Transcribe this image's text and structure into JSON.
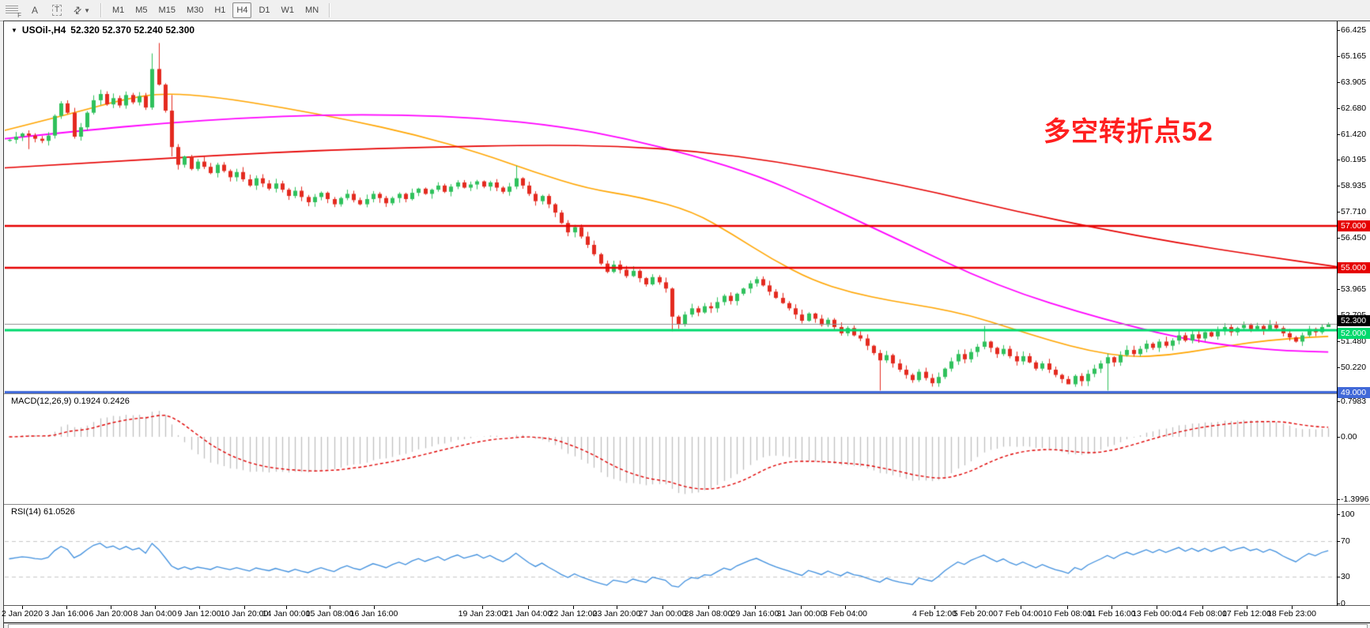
{
  "toolbar": {
    "tools": [
      {
        "id": "fibonacci",
        "glyph": "F"
      },
      {
        "id": "text",
        "glyph": "A"
      },
      {
        "id": "label",
        "glyph": "T"
      },
      {
        "id": "arrows",
        "glyph": "⇄"
      }
    ],
    "dropdown_caret": "▼",
    "timeframes": [
      "M1",
      "M5",
      "M15",
      "M30",
      "H1",
      "H4",
      "D1",
      "W1",
      "MN"
    ],
    "active_timeframe": "H4"
  },
  "chart": {
    "title_caret": "▼",
    "symbol_period": "USOil-,H4",
    "ohlc_display": "52.320 52.370 52.240 52.300"
  },
  "annotation": {
    "text": "多空转折点52",
    "color": "#ff1f1f"
  },
  "macd_panel": {
    "label": "MACD(12,26,9)",
    "values": "0.1924 0.2426",
    "axis_ticks": [
      {
        "text": "0.7983",
        "value": 0.7983
      },
      {
        "text": "0.00",
        "value": 0.0
      },
      {
        "text": "-1.3996",
        "value": -1.3996
      }
    ]
  },
  "rsi_panel": {
    "label": "RSI(14)",
    "value": "61.0526",
    "axis_ticks": [
      {
        "text": "100",
        "value": 100
      },
      {
        "text": "70",
        "value": 70
      },
      {
        "text": "30",
        "value": 30
      },
      {
        "text": "0",
        "value": 0
      }
    ],
    "guide_levels": [
      70,
      30
    ]
  },
  "price_axis": {
    "ticks": [
      "66.425",
      "65.165",
      "63.905",
      "62.680",
      "61.420",
      "60.195",
      "58.935",
      "57.710",
      "56.450",
      "53.965",
      "52.705",
      "51.480",
      "50.220"
    ],
    "badges": [
      {
        "text": "57.000",
        "price": 57.0,
        "bg": "#e60000",
        "fg": "#ffffff"
      },
      {
        "text": "55.000",
        "price": 55.0,
        "bg": "#e60000",
        "fg": "#ffffff"
      },
      {
        "text": "52.300",
        "price": 52.3,
        "bg": "#000000",
        "fg": "#ffffff"
      },
      {
        "text": "52.000",
        "price": 52.0,
        "bg": "#00d96d",
        "fg": "#ffffff"
      },
      {
        "text": "49.000",
        "price": 49.0,
        "bg": "#4169d8",
        "fg": "#ffffff"
      }
    ]
  },
  "chart_data": {
    "type": "candlestick",
    "symbol": "USOil-",
    "timeframe": "H4",
    "price_range_top": 66.77,
    "price_range_bottom": 48.95,
    "first_open": 61.1,
    "closes": [
      61.15,
      61.3,
      61.45,
      61.35,
      61.2,
      61.1,
      61.35,
      62.3,
      62.9,
      62.45,
      61.3,
      61.75,
      62.45,
      63.05,
      63.35,
      62.85,
      63.15,
      62.8,
      63.3,
      62.95,
      63.25,
      62.7,
      64.55,
      63.8,
      62.55,
      60.8,
      59.95,
      60.35,
      59.75,
      60.1,
      59.85,
      59.55,
      59.95,
      59.65,
      59.35,
      59.6,
      59.25,
      58.95,
      59.3,
      59.05,
      58.8,
      59.05,
      58.75,
      58.45,
      58.7,
      58.4,
      58.15,
      58.4,
      58.6,
      58.3,
      58.05,
      58.35,
      58.55,
      58.25,
      58.05,
      58.3,
      58.55,
      58.35,
      58.1,
      58.35,
      58.55,
      58.3,
      58.6,
      58.8,
      58.55,
      58.75,
      58.95,
      58.65,
      58.9,
      59.1,
      58.85,
      59.0,
      59.15,
      58.9,
      59.1,
      58.85,
      58.65,
      58.9,
      59.3,
      58.95,
      58.55,
      58.2,
      58.45,
      58.05,
      57.65,
      57.15,
      56.7,
      56.95,
      56.5,
      56.1,
      55.65,
      55.2,
      54.8,
      55.15,
      54.9,
      54.6,
      54.85,
      54.5,
      54.2,
      54.55,
      54.3,
      54.0,
      52.65,
      52.3,
      52.75,
      53.05,
      52.85,
      53.15,
      53.05,
      53.35,
      53.65,
      53.4,
      53.75,
      54.0,
      54.25,
      54.45,
      54.15,
      53.85,
      53.55,
      53.3,
      53.05,
      52.75,
      52.45,
      52.8,
      52.55,
      52.25,
      52.5,
      52.15,
      51.85,
      52.1,
      51.75,
      51.6,
      51.25,
      50.9,
      50.55,
      50.8,
      50.4,
      50.1,
      49.85,
      49.6,
      50.0,
      49.7,
      49.45,
      49.75,
      50.15,
      50.5,
      50.85,
      50.6,
      50.95,
      51.2,
      51.45,
      51.15,
      50.85,
      51.1,
      50.75,
      50.5,
      50.75,
      50.45,
      50.15,
      50.4,
      50.1,
      49.85,
      49.65,
      49.4,
      49.8,
      49.55,
      49.9,
      50.15,
      50.4,
      50.7,
      50.45,
      50.8,
      51.05,
      50.85,
      51.1,
      51.35,
      51.15,
      51.45,
      51.25,
      51.5,
      51.75,
      51.5,
      51.8,
      51.6,
      51.9,
      51.7,
      51.95,
      52.15,
      51.9,
      52.1,
      52.25,
      52.05,
      52.2,
      52.0,
      52.25,
      52.1,
      51.85,
      51.65,
      51.45,
      51.75,
      52.05,
      51.9,
      52.15,
      52.3
    ],
    "wick_overrides": {
      "3": {
        "l": 60.7
      },
      "22": {
        "h": 65.3
      },
      "23": {
        "h": 65.8
      },
      "25": {
        "h": 63.3,
        "l": 60.35
      },
      "78": {
        "h": 59.9
      },
      "102": {
        "l": 51.95
      },
      "134": {
        "l": 49.1
      },
      "150": {
        "h": 52.2
      },
      "163": {
        "l": 49.45
      },
      "169": {
        "l": 49.1
      },
      "203": {
        "h": 52.37,
        "l": 52.24
      }
    },
    "current_bar": {
      "open": 52.32,
      "high": 52.37,
      "low": 52.24,
      "close": 52.3
    },
    "colors": {
      "bull": "#2fc15c",
      "bear": "#e42a1f",
      "ma_fast": "#ffa500",
      "ma_mid": "#ff00ff",
      "ma_slow": "#e60000",
      "macd_histogram": "#c0c0c0",
      "macd_signal": "#e00000",
      "rsi_line": "#3f8fde",
      "rsi_guide": "#c8c8c8"
    },
    "moving_averages": [
      {
        "name": "ma-fast-orange",
        "color": "#ffa500",
        "width": 1.6,
        "full_width": false,
        "keypoints": [
          [
            0,
            61.6
          ],
          [
            0.05,
            62.4
          ],
          [
            0.09,
            63.1
          ],
          [
            0.12,
            63.4
          ],
          [
            0.16,
            63.2
          ],
          [
            0.21,
            62.7
          ],
          [
            0.26,
            62.1
          ],
          [
            0.31,
            61.4
          ],
          [
            0.36,
            60.5
          ],
          [
            0.4,
            59.6
          ],
          [
            0.44,
            58.8
          ],
          [
            0.48,
            58.4
          ],
          [
            0.52,
            57.7
          ],
          [
            0.55,
            56.6
          ],
          [
            0.58,
            55.4
          ],
          [
            0.61,
            54.4
          ],
          [
            0.64,
            53.8
          ],
          [
            0.67,
            53.4
          ],
          [
            0.7,
            53.1
          ],
          [
            0.73,
            52.7
          ],
          [
            0.76,
            52.1
          ],
          [
            0.79,
            51.5
          ],
          [
            0.82,
            51.0
          ],
          [
            0.85,
            50.7
          ],
          [
            0.88,
            50.8
          ],
          [
            0.91,
            51.1
          ],
          [
            0.94,
            51.4
          ],
          [
            0.97,
            51.6
          ],
          [
            1,
            51.7
          ]
        ]
      },
      {
        "name": "ma-mid-magenta",
        "color": "#ff00ff",
        "width": 1.8,
        "full_width": false,
        "keypoints": [
          [
            0,
            61.2
          ],
          [
            0.06,
            61.6
          ],
          [
            0.12,
            61.95
          ],
          [
            0.18,
            62.2
          ],
          [
            0.24,
            62.35
          ],
          [
            0.3,
            62.35
          ],
          [
            0.36,
            62.2
          ],
          [
            0.42,
            61.8
          ],
          [
            0.47,
            61.2
          ],
          [
            0.52,
            60.4
          ],
          [
            0.57,
            59.4
          ],
          [
            0.61,
            58.3
          ],
          [
            0.65,
            57.1
          ],
          [
            0.69,
            55.9
          ],
          [
            0.73,
            54.7
          ],
          [
            0.77,
            53.7
          ],
          [
            0.81,
            52.9
          ],
          [
            0.85,
            52.2
          ],
          [
            0.89,
            51.6
          ],
          [
            0.93,
            51.2
          ],
          [
            0.97,
            51.0
          ],
          [
            1,
            50.95
          ]
        ]
      },
      {
        "name": "ma-slow-red",
        "color": "#e60000",
        "width": 1.6,
        "full_width": true,
        "keypoints": [
          [
            0,
            59.8
          ],
          [
            0.08,
            60.1
          ],
          [
            0.16,
            60.4
          ],
          [
            0.24,
            60.65
          ],
          [
            0.32,
            60.8
          ],
          [
            0.4,
            60.9
          ],
          [
            0.46,
            60.85
          ],
          [
            0.52,
            60.6
          ],
          [
            0.58,
            60.1
          ],
          [
            0.64,
            59.4
          ],
          [
            0.7,
            58.6
          ],
          [
            0.76,
            57.7
          ],
          [
            0.82,
            56.9
          ],
          [
            0.88,
            56.2
          ],
          [
            0.94,
            55.6
          ],
          [
            1,
            55.05
          ]
        ]
      }
    ],
    "horizontal_lines": [
      {
        "price": 57.0,
        "color": "#e60000",
        "width": 2.5,
        "style": "solid",
        "name": "resistance-57"
      },
      {
        "price": 55.0,
        "color": "#e60000",
        "width": 2.5,
        "style": "solid",
        "name": "resistance-55"
      },
      {
        "price": 52.3,
        "color": "#909090",
        "width": 1,
        "style": "solid",
        "name": "current-price-line"
      },
      {
        "price": 52.0,
        "color": "#00d96d",
        "width": 3,
        "style": "solid",
        "name": "pivot-52"
      },
      {
        "price": 49.0,
        "color": "#4169d8",
        "width": 4,
        "style": "solid",
        "name": "support-49"
      }
    ],
    "indicators": {
      "macd": {
        "fast": 12,
        "slow": 26,
        "signal": 9,
        "current_macd": 0.1924,
        "current_signal": 0.2426
      },
      "rsi": {
        "period": 14,
        "current": 61.0526
      }
    }
  },
  "time_axis": {
    "labels": [
      "2 Jan 2020",
      "3 Jan 16:00",
      "6 Jan 20:00",
      "8 Jan 04:00",
      "9 Jan 12:00",
      "10 Jan 20:00",
      "14 Jan 00:00",
      "15 Jan 08:00",
      "16 Jan 16:00",
      "19 Jan 23:00",
      "21 Jan 04:00",
      "22 Jan 12:00",
      "23 Jan 20:00",
      "27 Jan 00:00",
      "28 Jan 08:00",
      "29 Jan 16:00",
      "31 Jan 00:00",
      "3 Feb 04:00",
      "4 Feb 12:00",
      "5 Feb 20:00",
      "7 Feb 04:00",
      "10 Feb 08:00",
      "11 Feb 16:00",
      "13 Feb 00:00",
      "14 Feb 08:00",
      "17 Feb 12:00",
      "18 Feb 23:00"
    ]
  }
}
